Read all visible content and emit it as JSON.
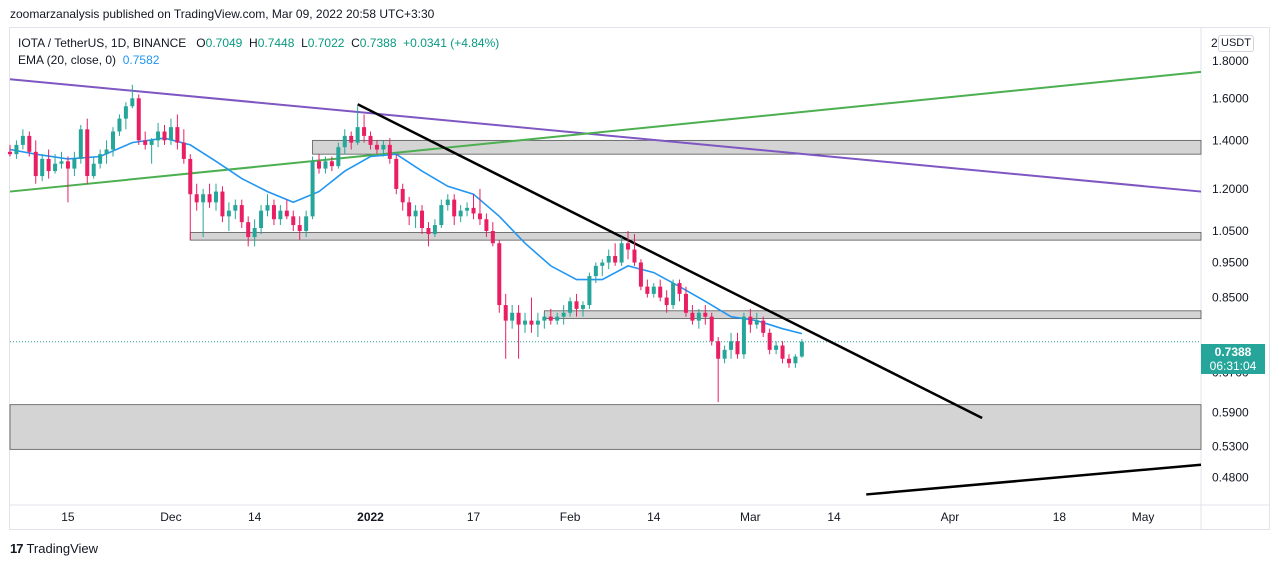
{
  "header": {
    "publisher": "zoomarzanalysis published on TradingView.com, Mar 09, 2022 20:58 UTC+3:30"
  },
  "legend": {
    "symbol": "IOTA / TetherUS, 1D, BINANCE",
    "open_label": "O",
    "open": "0.7049",
    "high_label": "H",
    "high": "0.7448",
    "low_label": "L",
    "low": "0.7022",
    "close_label": "C",
    "close": "0.7388",
    "change": "+0.0341 (+4.84%)",
    "ema_label": "EMA (20, close, 0)",
    "ema_value": "0.7582"
  },
  "axis_top_label": "2",
  "currency_button": "USDT",
  "price_tag": {
    "price": "0.7388",
    "countdown": "06:31:04"
  },
  "footer": {
    "brand": "TradingView"
  },
  "colors": {
    "up": "#26a69a",
    "down": "#e91e63",
    "ema": "#2196f3",
    "purple_line": "#7e57c2",
    "green_line": "#4caf50",
    "trendline": "#000000",
    "zone_fill": "#cfcfcf"
  },
  "chart_data": {
    "type": "candlestick",
    "title": "IOTA / TetherUS, 1D, BINANCE",
    "y_scale": "log",
    "ylim": [
      0.44,
      2.0
    ],
    "y_ticks": [
      "1.8000",
      "1.6000",
      "1.4000",
      "1.2000",
      "1.0500",
      "0.9500",
      "0.8500",
      "0.7388",
      "0.6700",
      "0.5900",
      "0.5300",
      "0.4800"
    ],
    "y_tick_values": [
      1.8,
      1.6,
      1.4,
      1.2,
      1.05,
      0.95,
      0.85,
      0.7388,
      0.67,
      0.59,
      0.53,
      0.48
    ],
    "x_ticks": [
      "15",
      "Dec",
      "14",
      "2022",
      "17",
      "Feb",
      "14",
      "Mar",
      "14",
      "Apr",
      "18",
      "May"
    ],
    "x_tick_dates": [
      "2021-11-15",
      "2021-12-01",
      "2021-12-14",
      "2022-01-01",
      "2022-01-17",
      "2022-02-01",
      "2022-02-14",
      "2022-03-01",
      "2022-03-14",
      "2022-04-01",
      "2022-04-18",
      "2022-05-01"
    ],
    "x_range": [
      "2021-11-06",
      "2022-05-10"
    ],
    "candles": [
      [
        "2021-11-06",
        1.35,
        1.38,
        1.33,
        1.34
      ],
      [
        "2021-11-07",
        1.34,
        1.4,
        1.32,
        1.38
      ],
      [
        "2021-11-08",
        1.38,
        1.45,
        1.36,
        1.42
      ],
      [
        "2021-11-09",
        1.42,
        1.44,
        1.33,
        1.35
      ],
      [
        "2021-11-10",
        1.35,
        1.4,
        1.22,
        1.25
      ],
      [
        "2021-11-11",
        1.25,
        1.34,
        1.23,
        1.32
      ],
      [
        "2021-11-12",
        1.32,
        1.36,
        1.24,
        1.27
      ],
      [
        "2021-11-13",
        1.27,
        1.34,
        1.26,
        1.3
      ],
      [
        "2021-11-14",
        1.3,
        1.35,
        1.28,
        1.31
      ],
      [
        "2021-11-15",
        1.31,
        1.33,
        1.15,
        1.28
      ],
      [
        "2021-11-16",
        1.28,
        1.35,
        1.25,
        1.32
      ],
      [
        "2021-11-17",
        1.32,
        1.47,
        1.3,
        1.45
      ],
      [
        "2021-11-18",
        1.45,
        1.5,
        1.22,
        1.25
      ],
      [
        "2021-11-19",
        1.25,
        1.33,
        1.24,
        1.3
      ],
      [
        "2021-11-20",
        1.3,
        1.36,
        1.28,
        1.34
      ],
      [
        "2021-11-21",
        1.34,
        1.4,
        1.3,
        1.36
      ],
      [
        "2021-11-22",
        1.36,
        1.46,
        1.33,
        1.44
      ],
      [
        "2021-11-23",
        1.44,
        1.52,
        1.42,
        1.5
      ],
      [
        "2021-11-24",
        1.5,
        1.58,
        1.45,
        1.56
      ],
      [
        "2021-11-25",
        1.56,
        1.67,
        1.55,
        1.6
      ],
      [
        "2021-11-26",
        1.6,
        1.62,
        1.38,
        1.4
      ],
      [
        "2021-11-27",
        1.4,
        1.44,
        1.36,
        1.38
      ],
      [
        "2021-11-28",
        1.38,
        1.41,
        1.3,
        1.4
      ],
      [
        "2021-11-29",
        1.4,
        1.48,
        1.37,
        1.44
      ],
      [
        "2021-11-30",
        1.44,
        1.47,
        1.38,
        1.4
      ],
      [
        "2021-12-01",
        1.4,
        1.5,
        1.38,
        1.46
      ],
      [
        "2021-12-02",
        1.46,
        1.52,
        1.36,
        1.39
      ],
      [
        "2021-12-03",
        1.39,
        1.45,
        1.3,
        1.32
      ],
      [
        "2021-12-04",
        1.32,
        1.34,
        1.02,
        1.18
      ],
      [
        "2021-12-05",
        1.18,
        1.22,
        1.12,
        1.15
      ],
      [
        "2021-12-06",
        1.15,
        1.2,
        1.03,
        1.18
      ],
      [
        "2021-12-07",
        1.18,
        1.22,
        1.13,
        1.15
      ],
      [
        "2021-12-08",
        1.15,
        1.22,
        1.12,
        1.19
      ],
      [
        "2021-12-09",
        1.19,
        1.21,
        1.08,
        1.1
      ],
      [
        "2021-12-10",
        1.1,
        1.15,
        1.05,
        1.12
      ],
      [
        "2021-12-11",
        1.12,
        1.16,
        1.09,
        1.14
      ],
      [
        "2021-12-12",
        1.14,
        1.16,
        1.06,
        1.08
      ],
      [
        "2021-12-13",
        1.08,
        1.1,
        1.0,
        1.03
      ],
      [
        "2021-12-14",
        1.03,
        1.09,
        1.0,
        1.06
      ],
      [
        "2021-12-15",
        1.06,
        1.14,
        1.04,
        1.12
      ],
      [
        "2021-12-16",
        1.12,
        1.18,
        1.1,
        1.14
      ],
      [
        "2021-12-17",
        1.14,
        1.16,
        1.07,
        1.09
      ],
      [
        "2021-12-18",
        1.09,
        1.14,
        1.07,
        1.12
      ],
      [
        "2021-12-19",
        1.12,
        1.16,
        1.09,
        1.1
      ],
      [
        "2021-12-20",
        1.1,
        1.12,
        1.05,
        1.07
      ],
      [
        "2021-12-21",
        1.07,
        1.1,
        1.02,
        1.05
      ],
      [
        "2021-12-22",
        1.05,
        1.12,
        1.03,
        1.1
      ],
      [
        "2021-12-23",
        1.1,
        1.33,
        1.09,
        1.31
      ],
      [
        "2021-12-24",
        1.31,
        1.34,
        1.26,
        1.28
      ],
      [
        "2021-12-25",
        1.28,
        1.33,
        1.26,
        1.31
      ],
      [
        "2021-12-26",
        1.31,
        1.33,
        1.27,
        1.29
      ],
      [
        "2021-12-27",
        1.29,
        1.39,
        1.28,
        1.37
      ],
      [
        "2021-12-28",
        1.37,
        1.45,
        1.34,
        1.42
      ],
      [
        "2021-12-29",
        1.42,
        1.44,
        1.36,
        1.39
      ],
      [
        "2021-12-30",
        1.39,
        1.56,
        1.38,
        1.46
      ],
      [
        "2021-12-31",
        1.46,
        1.52,
        1.39,
        1.42
      ],
      [
        "2022-01-01",
        1.42,
        1.44,
        1.36,
        1.38
      ],
      [
        "2022-01-02",
        1.38,
        1.4,
        1.34,
        1.36
      ],
      [
        "2022-01-03",
        1.36,
        1.4,
        1.33,
        1.38
      ],
      [
        "2022-01-04",
        1.38,
        1.41,
        1.3,
        1.32
      ],
      [
        "2022-01-05",
        1.32,
        1.34,
        1.18,
        1.2
      ],
      [
        "2022-01-06",
        1.2,
        1.22,
        1.12,
        1.15
      ],
      [
        "2022-01-07",
        1.15,
        1.17,
        1.07,
        1.1
      ],
      [
        "2022-01-08",
        1.1,
        1.14,
        1.06,
        1.12
      ],
      [
        "2022-01-09",
        1.12,
        1.14,
        1.04,
        1.06
      ],
      [
        "2022-01-10",
        1.06,
        1.08,
        1.0,
        1.04
      ],
      [
        "2022-01-11",
        1.04,
        1.09,
        1.03,
        1.07
      ],
      [
        "2022-01-12",
        1.07,
        1.16,
        1.06,
        1.14
      ],
      [
        "2022-01-13",
        1.14,
        1.18,
        1.12,
        1.16
      ],
      [
        "2022-01-14",
        1.16,
        1.18,
        1.07,
        1.1
      ],
      [
        "2022-01-15",
        1.1,
        1.14,
        1.08,
        1.12
      ],
      [
        "2022-01-16",
        1.12,
        1.15,
        1.1,
        1.13
      ],
      [
        "2022-01-17",
        1.13,
        1.18,
        1.09,
        1.11
      ],
      [
        "2022-01-18",
        1.11,
        1.2,
        1.07,
        1.09
      ],
      [
        "2022-01-19",
        1.09,
        1.11,
        1.03,
        1.05
      ],
      [
        "2022-01-20",
        1.05,
        1.08,
        1.0,
        1.01
      ],
      [
        "2022-01-21",
        1.01,
        1.02,
        0.81,
        0.83
      ],
      [
        "2022-01-22",
        0.83,
        0.86,
        0.7,
        0.79
      ],
      [
        "2022-01-23",
        0.79,
        0.83,
        0.77,
        0.81
      ],
      [
        "2022-01-24",
        0.81,
        0.83,
        0.7,
        0.78
      ],
      [
        "2022-01-25",
        0.78,
        0.81,
        0.76,
        0.79
      ],
      [
        "2022-01-26",
        0.79,
        0.85,
        0.76,
        0.78
      ],
      [
        "2022-01-27",
        0.78,
        0.81,
        0.75,
        0.79
      ],
      [
        "2022-01-28",
        0.79,
        0.81,
        0.77,
        0.8
      ],
      [
        "2022-01-29",
        0.8,
        0.82,
        0.78,
        0.79
      ],
      [
        "2022-01-30",
        0.79,
        0.81,
        0.78,
        0.8
      ],
      [
        "2022-01-31",
        0.8,
        0.83,
        0.78,
        0.81
      ],
      [
        "2022-02-01",
        0.81,
        0.85,
        0.8,
        0.84
      ],
      [
        "2022-02-02",
        0.84,
        0.86,
        0.8,
        0.82
      ],
      [
        "2022-02-03",
        0.82,
        0.84,
        0.8,
        0.83
      ],
      [
        "2022-02-04",
        0.83,
        0.92,
        0.82,
        0.91
      ],
      [
        "2022-02-05",
        0.91,
        0.95,
        0.89,
        0.94
      ],
      [
        "2022-02-06",
        0.94,
        0.96,
        0.91,
        0.95
      ],
      [
        "2022-02-07",
        0.95,
        0.99,
        0.93,
        0.97
      ],
      [
        "2022-02-08",
        0.97,
        1.01,
        0.94,
        0.95
      ],
      [
        "2022-02-09",
        0.95,
        1.03,
        0.94,
        1.01
      ],
      [
        "2022-02-10",
        1.01,
        1.05,
        0.96,
        0.99
      ],
      [
        "2022-02-11",
        0.99,
        1.04,
        0.94,
        0.95
      ],
      [
        "2022-02-12",
        0.95,
        0.96,
        0.87,
        0.88
      ],
      [
        "2022-02-13",
        0.88,
        0.9,
        0.85,
        0.86
      ],
      [
        "2022-02-14",
        0.86,
        0.89,
        0.85,
        0.88
      ],
      [
        "2022-02-15",
        0.88,
        0.9,
        0.84,
        0.85
      ],
      [
        "2022-02-16",
        0.85,
        0.87,
        0.81,
        0.83
      ],
      [
        "2022-02-17",
        0.83,
        0.9,
        0.82,
        0.89
      ],
      [
        "2022-02-18",
        0.89,
        0.9,
        0.84,
        0.86
      ],
      [
        "2022-02-19",
        0.86,
        0.88,
        0.8,
        0.81
      ],
      [
        "2022-02-20",
        0.81,
        0.83,
        0.78,
        0.79
      ],
      [
        "2022-02-21",
        0.79,
        0.82,
        0.77,
        0.81
      ],
      [
        "2022-02-22",
        0.81,
        0.83,
        0.78,
        0.8
      ],
      [
        "2022-02-23",
        0.8,
        0.81,
        0.73,
        0.74
      ],
      [
        "2022-02-24",
        0.74,
        0.75,
        0.61,
        0.7
      ],
      [
        "2022-02-25",
        0.7,
        0.73,
        0.69,
        0.72
      ],
      [
        "2022-02-26",
        0.72,
        0.76,
        0.7,
        0.74
      ],
      [
        "2022-02-27",
        0.74,
        0.76,
        0.7,
        0.71
      ],
      [
        "2022-02-28",
        0.71,
        0.81,
        0.7,
        0.8
      ],
      [
        "2022-03-01",
        0.8,
        0.82,
        0.76,
        0.78
      ],
      [
        "2022-03-02",
        0.78,
        0.81,
        0.77,
        0.79
      ],
      [
        "2022-03-03",
        0.79,
        0.8,
        0.75,
        0.76
      ],
      [
        "2022-03-04",
        0.76,
        0.77,
        0.71,
        0.72
      ],
      [
        "2022-03-05",
        0.72,
        0.74,
        0.71,
        0.73
      ],
      [
        "2022-03-06",
        0.73,
        0.74,
        0.69,
        0.7
      ],
      [
        "2022-03-07",
        0.7,
        0.71,
        0.68,
        0.69
      ],
      [
        "2022-03-08",
        0.69,
        0.71,
        0.68,
        0.705
      ],
      [
        "2022-03-09",
        0.7049,
        0.7448,
        0.7022,
        0.7388
      ]
    ],
    "ema": {
      "name": "EMA (20, close, 0)",
      "values": [
        [
          "2021-11-06",
          1.36
        ],
        [
          "2021-11-10",
          1.34
        ],
        [
          "2021-11-15",
          1.32
        ],
        [
          "2021-11-20",
          1.33
        ],
        [
          "2021-11-25",
          1.39
        ],
        [
          "2021-11-30",
          1.41
        ],
        [
          "2021-12-04",
          1.38
        ],
        [
          "2021-12-08",
          1.31
        ],
        [
          "2021-12-12",
          1.24
        ],
        [
          "2021-12-16",
          1.19
        ],
        [
          "2021-12-20",
          1.15
        ],
        [
          "2021-12-24",
          1.19
        ],
        [
          "2021-12-28",
          1.27
        ],
        [
          "2022-01-01",
          1.33
        ],
        [
          "2022-01-05",
          1.34
        ],
        [
          "2022-01-09",
          1.27
        ],
        [
          "2022-01-13",
          1.21
        ],
        [
          "2022-01-17",
          1.18
        ],
        [
          "2022-01-21",
          1.1
        ],
        [
          "2022-01-25",
          1.01
        ],
        [
          "2022-01-29",
          0.94
        ],
        [
          "2022-02-02",
          0.9
        ],
        [
          "2022-02-06",
          0.9
        ],
        [
          "2022-02-10",
          0.94
        ],
        [
          "2022-02-14",
          0.92
        ],
        [
          "2022-02-18",
          0.88
        ],
        [
          "2022-02-22",
          0.84
        ],
        [
          "2022-02-26",
          0.8
        ],
        [
          "2022-03-02",
          0.79
        ],
        [
          "2022-03-06",
          0.77
        ],
        [
          "2022-03-09",
          0.7582
        ]
      ]
    },
    "trendlines": [
      {
        "name": "purple",
        "from": [
          "2021-11-06",
          1.7
        ],
        "to": [
          "2022-05-10",
          1.19
        ]
      },
      {
        "name": "green",
        "from": [
          "2021-11-06",
          1.19
        ],
        "to": [
          "2022-05-10",
          1.74
        ]
      },
      {
        "name": "black-down",
        "from": [
          "2021-12-30",
          1.57
        ],
        "to": [
          "2022-04-06",
          0.58
        ]
      },
      {
        "name": "black-up",
        "from": [
          "2022-03-19",
          0.455
        ],
        "to": [
          "2022-05-10",
          0.5
        ]
      }
    ],
    "zones": [
      {
        "from": "2021-12-23",
        "to": "2022-05-10",
        "low": 1.34,
        "high": 1.4
      },
      {
        "from": "2021-12-04",
        "to": "2022-05-10",
        "low": 1.02,
        "high": 1.045
      },
      {
        "from": "2022-01-28",
        "to": "2022-05-10",
        "low": 0.795,
        "high": 0.815
      },
      {
        "from": "2021-11-06",
        "to": "2022-05-10",
        "low": 0.525,
        "high": 0.605
      }
    ],
    "last_price": 0.7388
  }
}
